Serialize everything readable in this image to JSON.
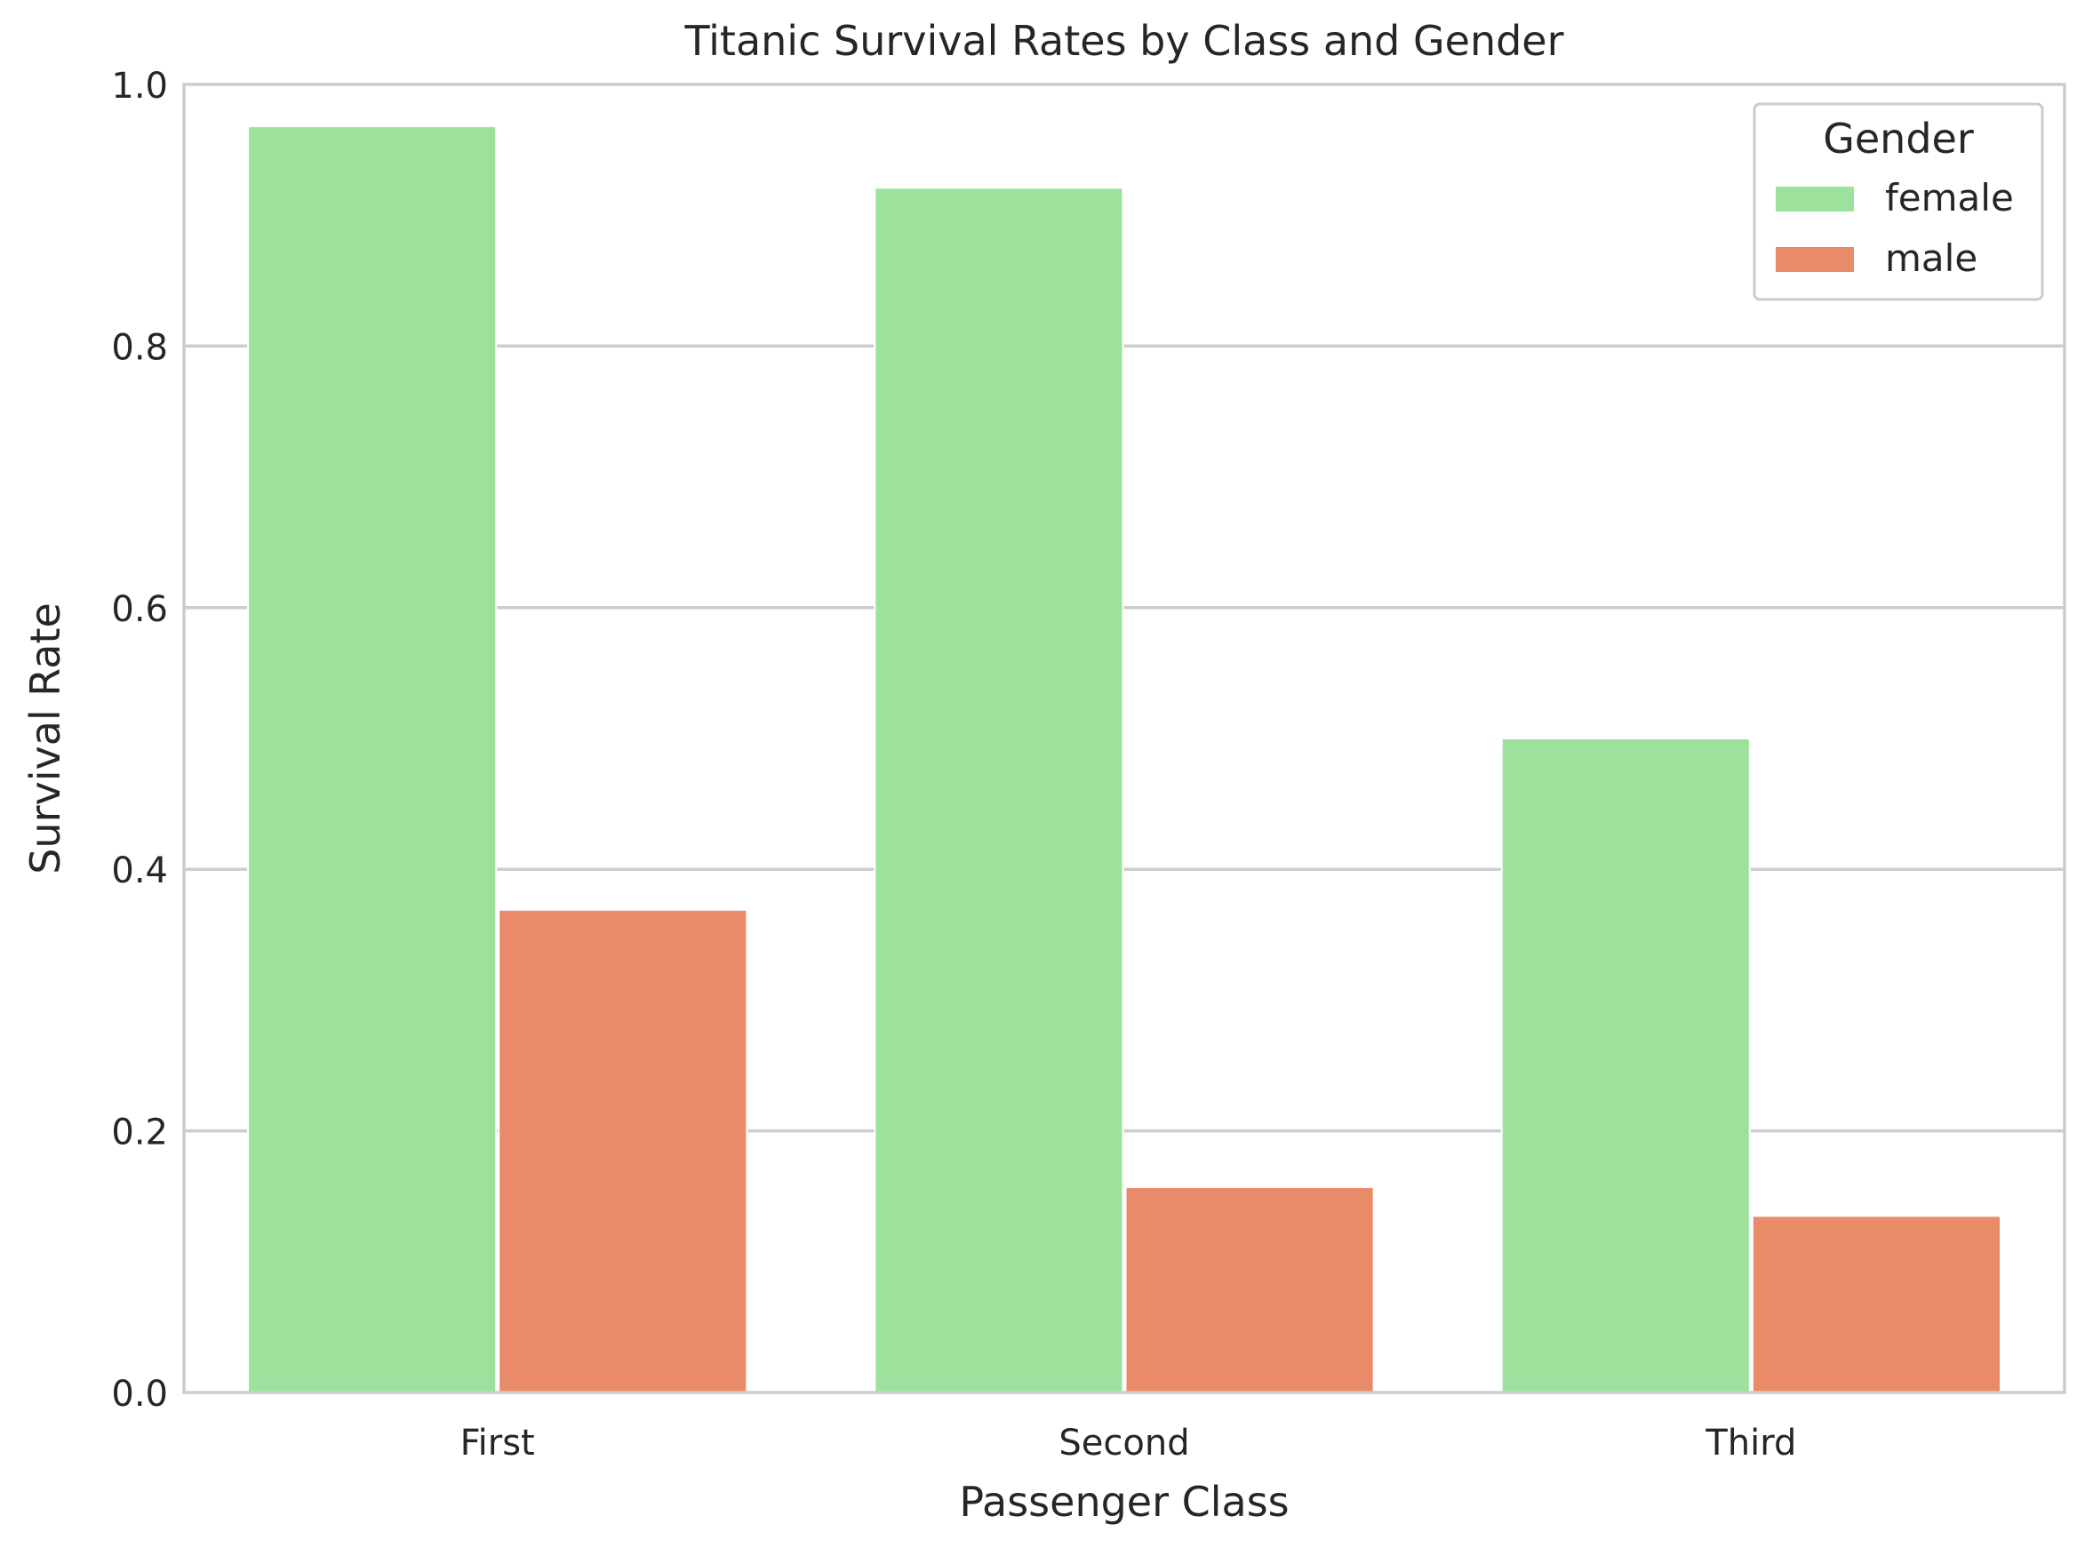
{
  "chart_data": {
    "type": "bar",
    "title": "Titanic Survival Rates by Class and Gender",
    "xlabel": "Passenger Class",
    "ylabel": "Survival Rate",
    "categories": [
      "First",
      "Second",
      "Third"
    ],
    "ylim": [
      0,
      1.0
    ],
    "yticks": [
      0.0,
      0.2,
      0.4,
      0.6,
      0.8,
      1.0
    ],
    "ytick_labels": [
      "0.0",
      "0.2",
      "0.4",
      "0.6",
      "0.8",
      "1.0"
    ],
    "grid": "horizontal",
    "legend": {
      "title": "Gender",
      "placement": "top-right"
    },
    "series": [
      {
        "name": "female",
        "color": "#9ce29c",
        "values": [
          0.968,
          0.921,
          0.5
        ]
      },
      {
        "name": "male",
        "color": "#e98a68",
        "values": [
          0.369,
          0.157,
          0.135
        ]
      }
    ]
  }
}
